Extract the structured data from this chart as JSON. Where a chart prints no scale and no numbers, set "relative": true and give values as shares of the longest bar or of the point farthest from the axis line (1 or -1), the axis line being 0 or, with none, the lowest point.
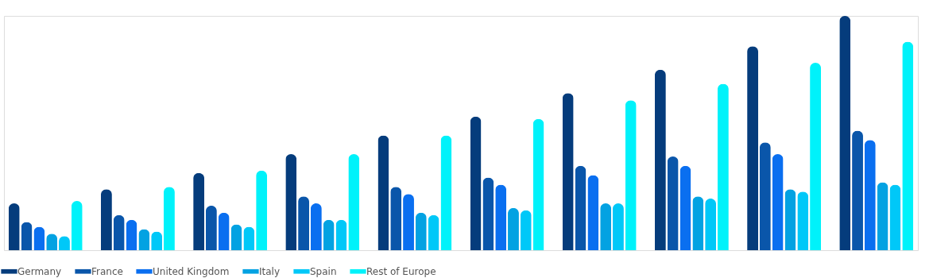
{
  "chart_data": {
    "type": "bar",
    "relative": true,
    "legend": "bottom",
    "categories": [
      null,
      null,
      null,
      null,
      null,
      null,
      null,
      null,
      null,
      null
    ],
    "series": [
      {
        "name": "Germany",
        "color": "#053c7c",
        "values": [
          0.2,
          0.26,
          0.33,
          0.41,
          0.49,
          0.57,
          0.67,
          0.77,
          0.87,
          1
        ]
      },
      {
        "name": "France",
        "color": "#0a56aa",
        "values": [
          0.12,
          0.15,
          0.19,
          0.23,
          0.27,
          0.31,
          0.36,
          0.4,
          0.46,
          0.51
        ]
      },
      {
        "name": "United Kingdom",
        "color": "#0a6ff0",
        "values": [
          0.1,
          0.13,
          0.16,
          0.2,
          0.24,
          0.28,
          0.32,
          0.36,
          0.41,
          0.47
        ]
      },
      {
        "name": "Italy",
        "color": "#03a2e2",
        "values": [
          0.07,
          0.09,
          0.11,
          0.13,
          0.16,
          0.18,
          0.2,
          0.23,
          0.26,
          0.29
        ]
      },
      {
        "name": "Spain",
        "color": "#00c8f8",
        "values": [
          0.06,
          0.08,
          0.1,
          0.13,
          0.15,
          0.17,
          0.2,
          0.22,
          0.25,
          0.28
        ]
      },
      {
        "name": "Rest of Europe",
        "color": "#00f2fa",
        "values": [
          0.21,
          0.27,
          0.34,
          0.41,
          0.49,
          0.56,
          0.64,
          0.71,
          0.8,
          0.89
        ]
      }
    ]
  }
}
